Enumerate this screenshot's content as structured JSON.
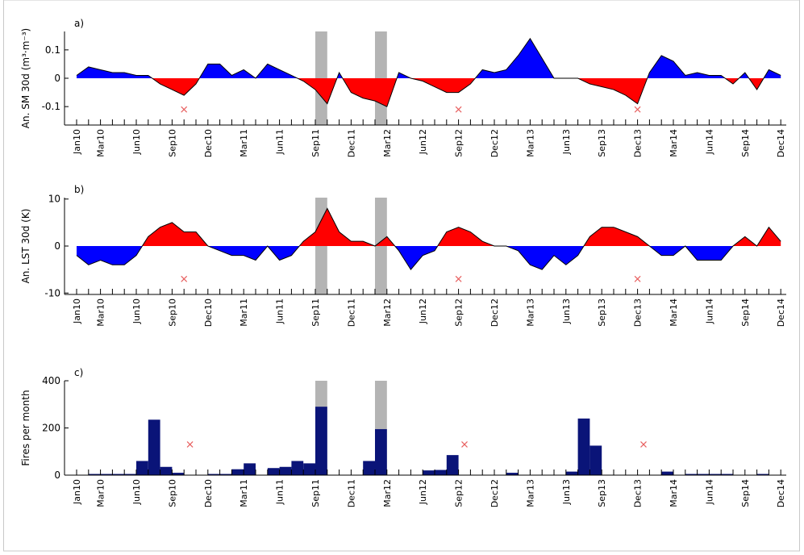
{
  "chart_data": [
    {
      "type": "area",
      "panel_label": "a)",
      "ylabel": "An. SM 30d (m³·m⁻³)",
      "categories": [
        "Jan10",
        null,
        "Mar10",
        null,
        null,
        "Jun10",
        null,
        null,
        "Sep10",
        null,
        null,
        "Dec10",
        null,
        null,
        "Mar11",
        null,
        null,
        "Jun11",
        null,
        null,
        "Sep11",
        null,
        null,
        "Dec11",
        null,
        null,
        "Mar12",
        null,
        null,
        "Jun12",
        null,
        null,
        "Sep12",
        null,
        null,
        "Dec12",
        null,
        null,
        "Mar13",
        null,
        null,
        "Jun13",
        null,
        null,
        "Sep13",
        null,
        null,
        "Dec13",
        null,
        null,
        "Mar14",
        null,
        null,
        "Jun14",
        null,
        null,
        "Sep14",
        null,
        null,
        "Dec14"
      ],
      "values": [
        0.01,
        0.04,
        0.03,
        0.02,
        0.02,
        0.01,
        0.01,
        -0.02,
        -0.04,
        -0.06,
        -0.02,
        0.05,
        0.05,
        0.01,
        0.03,
        0.0,
        0.05,
        0.03,
        0.01,
        -0.01,
        -0.04,
        -0.09,
        0.02,
        -0.05,
        -0.07,
        -0.08,
        -0.1,
        0.02,
        0.0,
        -0.01,
        -0.03,
        -0.05,
        -0.05,
        -0.02,
        0.03,
        0.02,
        0.03,
        0.08,
        0.14,
        0.07,
        0.0,
        0.0,
        0.0,
        -0.02,
        -0.03,
        -0.04,
        -0.06,
        -0.09,
        0.02,
        0.08,
        0.06,
        0.01,
        0.02,
        0.01,
        0.01,
        -0.02,
        0.02,
        -0.04,
        0.03,
        0.01
      ],
      "positive_color": "#0000ff",
      "negative_color": "#ff0000",
      "ylim": [
        -0.165,
        0.165
      ],
      "yticks": [
        -0.1,
        0,
        0.1
      ],
      "shaded": [
        [
          20,
          21
        ],
        [
          25,
          26
        ]
      ],
      "shade_color": "#b4b4b4",
      "marker_x": [
        9,
        32,
        47
      ],
      "marker_y": [
        -0.11,
        -0.11,
        -0.11
      ],
      "marker_color": "#e86060"
    },
    {
      "type": "area",
      "panel_label": "b)",
      "ylabel": "An. LST 30d (K)",
      "categories": [
        "Jan10",
        null,
        "Mar10",
        null,
        null,
        "Jun10",
        null,
        null,
        "Sep10",
        null,
        null,
        "Dec10",
        null,
        null,
        "Mar11",
        null,
        null,
        "Jun11",
        null,
        null,
        "Sep11",
        null,
        null,
        "Dec11",
        null,
        null,
        "Mar12",
        null,
        null,
        "Jun12",
        null,
        null,
        "Sep12",
        null,
        null,
        "Dec12",
        null,
        null,
        "Mar13",
        null,
        null,
        "Jun13",
        null,
        null,
        "Sep13",
        null,
        null,
        "Dec13",
        null,
        null,
        "Mar14",
        null,
        null,
        "Jun14",
        null,
        null,
        "Sep14",
        null,
        null,
        "Dec14"
      ],
      "values": [
        -2,
        -4,
        -3,
        -4,
        -4,
        -2,
        2,
        4,
        5,
        3,
        3,
        0,
        -1,
        -2,
        -2,
        -3,
        0,
        -3,
        -2,
        1,
        3,
        8,
        3,
        1,
        1,
        0,
        2,
        -1,
        -5,
        -2,
        -1,
        3,
        4,
        3,
        1,
        0,
        0,
        -1,
        -4,
        -5,
        -2,
        -4,
        -2,
        2,
        4,
        4,
        3,
        2,
        0,
        -2,
        -2,
        0,
        -3,
        -3,
        -3,
        0,
        2,
        0,
        4,
        1
      ],
      "positive_color": "#ff0000",
      "negative_color": "#0000ff",
      "ylim": [
        -10.3,
        10.3
      ],
      "yticks": [
        -10,
        0,
        10
      ],
      "shaded": [
        [
          20,
          21
        ],
        [
          25,
          26
        ]
      ],
      "shade_color": "#b4b4b4",
      "marker_x": [
        9,
        32,
        47
      ],
      "marker_y": [
        -7,
        -7,
        -7
      ],
      "marker_color": "#e86060"
    },
    {
      "type": "bar",
      "panel_label": "c)",
      "ylabel": "Fires per month",
      "categories": [
        "Jan10",
        null,
        "Mar10",
        null,
        null,
        "Jun10",
        null,
        null,
        "Sep10",
        null,
        null,
        "Dec10",
        null,
        null,
        "Mar11",
        null,
        null,
        "Jun11",
        null,
        null,
        "Sep11",
        null,
        null,
        "Dec11",
        null,
        null,
        "Mar12",
        null,
        null,
        "Jun12",
        null,
        null,
        "Sep12",
        null,
        null,
        "Dec12",
        null,
        null,
        "Mar13",
        null,
        null,
        "Jun13",
        null,
        null,
        "Sep13",
        null,
        null,
        "Dec13",
        null,
        null,
        "Mar14",
        null,
        null,
        "Jun14",
        null,
        null,
        "Sep14",
        null,
        null,
        "Dec14"
      ],
      "values": [
        0,
        5,
        5,
        5,
        5,
        60,
        235,
        35,
        10,
        0,
        0,
        5,
        5,
        25,
        50,
        0,
        30,
        35,
        60,
        50,
        290,
        0,
        0,
        0,
        60,
        195,
        0,
        0,
        0,
        20,
        22,
        85,
        0,
        0,
        0,
        0,
        10,
        0,
        0,
        0,
        0,
        15,
        240,
        125,
        0,
        0,
        0,
        0,
        0,
        15,
        0,
        5,
        5,
        5,
        5,
        0,
        0,
        5,
        0,
        0
      ],
      "color": "#0a1478",
      "ylim": [
        0,
        400
      ],
      "yticks": [
        0,
        200,
        400
      ],
      "shaded": [
        [
          20,
          21
        ],
        [
          25,
          26
        ]
      ],
      "shade_color": "#b4b4b4",
      "marker_x": [
        9,
        32,
        47
      ],
      "marker_y": [
        130,
        130,
        130
      ],
      "marker_color": "#e86060"
    }
  ]
}
